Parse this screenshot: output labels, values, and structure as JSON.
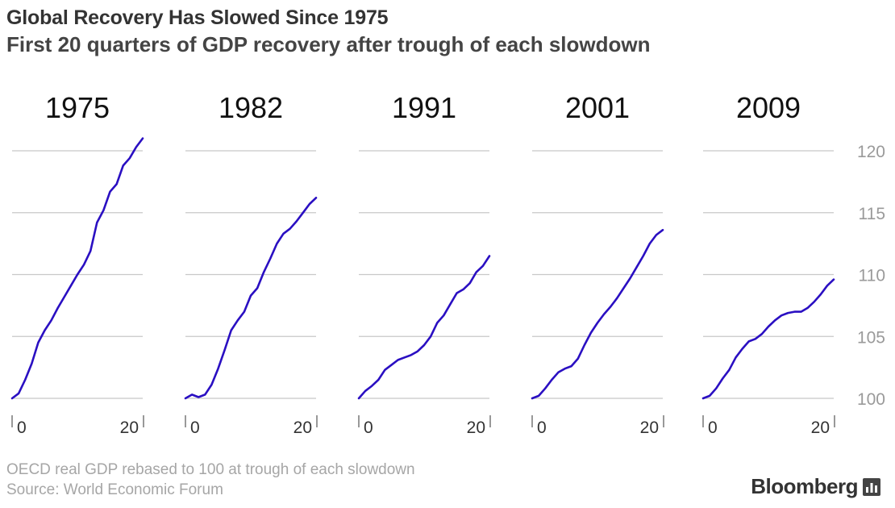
{
  "header": {
    "title": "Global Recovery Has Slowed Since 1975",
    "subtitle": "First 20 quarters of GDP recovery after trough of each slowdown"
  },
  "footer": {
    "note": "OECD real GDP rebased to 100 at trough of each slowdown",
    "source": "Source: World Economic Forum",
    "brand": "Bloomberg"
  },
  "colors": {
    "line": "#2a0fc2",
    "grid": "#c8c8c8",
    "tick_text": "#9a9a9a",
    "panel_title": "#111111"
  },
  "chart_data": [
    {
      "type": "line",
      "title": "1975",
      "x": [
        0,
        1,
        2,
        3,
        4,
        5,
        6,
        7,
        8,
        9,
        10,
        11,
        12,
        13,
        14,
        15,
        16,
        17,
        18,
        19,
        20
      ],
      "values": [
        100.0,
        100.4,
        101.5,
        102.8,
        104.5,
        105.5,
        106.3,
        107.3,
        108.2,
        109.1,
        110.0,
        110.8,
        111.9,
        114.2,
        115.2,
        116.7,
        117.3,
        118.8,
        119.4,
        120.3,
        121.0
      ],
      "ylim": [
        100,
        120
      ],
      "yticks": [
        100,
        105,
        110,
        115,
        120
      ],
      "xticks": [
        0,
        20
      ],
      "xlabel": "",
      "ylabel": ""
    },
    {
      "type": "line",
      "title": "1982",
      "x": [
        0,
        1,
        2,
        3,
        4,
        5,
        6,
        7,
        8,
        9,
        10,
        11,
        12,
        13,
        14,
        15,
        16,
        17,
        18,
        19,
        20
      ],
      "values": [
        100.0,
        100.3,
        100.1,
        100.3,
        101.1,
        102.4,
        103.9,
        105.5,
        106.3,
        107.0,
        108.3,
        108.9,
        110.2,
        111.3,
        112.5,
        113.3,
        113.7,
        114.3,
        115.0,
        115.7,
        116.2
      ],
      "ylim": [
        100,
        120
      ],
      "yticks": [
        100,
        105,
        110,
        115,
        120
      ],
      "xticks": [
        0,
        20
      ],
      "xlabel": "",
      "ylabel": ""
    },
    {
      "type": "line",
      "title": "1991",
      "x": [
        0,
        1,
        2,
        3,
        4,
        5,
        6,
        7,
        8,
        9,
        10,
        11,
        12,
        13,
        14,
        15,
        16,
        17,
        18,
        19,
        20
      ],
      "values": [
        100.0,
        100.6,
        101.0,
        101.5,
        102.3,
        102.7,
        103.1,
        103.3,
        103.5,
        103.8,
        104.3,
        105.0,
        106.1,
        106.7,
        107.6,
        108.5,
        108.8,
        109.3,
        110.2,
        110.7,
        111.5
      ],
      "ylim": [
        100,
        120
      ],
      "yticks": [
        100,
        105,
        110,
        115,
        120
      ],
      "xticks": [
        0,
        20
      ],
      "xlabel": "",
      "ylabel": ""
    },
    {
      "type": "line",
      "title": "2001",
      "x": [
        0,
        1,
        2,
        3,
        4,
        5,
        6,
        7,
        8,
        9,
        10,
        11,
        12,
        13,
        14,
        15,
        16,
        17,
        18,
        19,
        20
      ],
      "values": [
        100.0,
        100.2,
        100.8,
        101.5,
        102.1,
        102.4,
        102.6,
        103.2,
        104.3,
        105.3,
        106.1,
        106.8,
        107.4,
        108.1,
        108.9,
        109.7,
        110.6,
        111.5,
        112.5,
        113.2,
        113.6
      ],
      "ylim": [
        100,
        120
      ],
      "yticks": [
        100,
        105,
        110,
        115,
        120
      ],
      "xticks": [
        0,
        20
      ],
      "xlabel": "",
      "ylabel": ""
    },
    {
      "type": "line",
      "title": "2009",
      "x": [
        0,
        1,
        2,
        3,
        4,
        5,
        6,
        7,
        8,
        9,
        10,
        11,
        12,
        13,
        14,
        15,
        16,
        17,
        18,
        19,
        20
      ],
      "values": [
        100.0,
        100.2,
        100.8,
        101.6,
        102.3,
        103.3,
        104.0,
        104.6,
        104.8,
        105.2,
        105.8,
        106.3,
        106.7,
        106.9,
        107.0,
        107.0,
        107.3,
        107.8,
        108.4,
        109.1,
        109.6
      ],
      "ylim": [
        100,
        120
      ],
      "yticks": [
        100,
        105,
        110,
        115,
        120
      ],
      "xticks": [
        0,
        20
      ],
      "xlabel": "",
      "ylabel": ""
    }
  ]
}
